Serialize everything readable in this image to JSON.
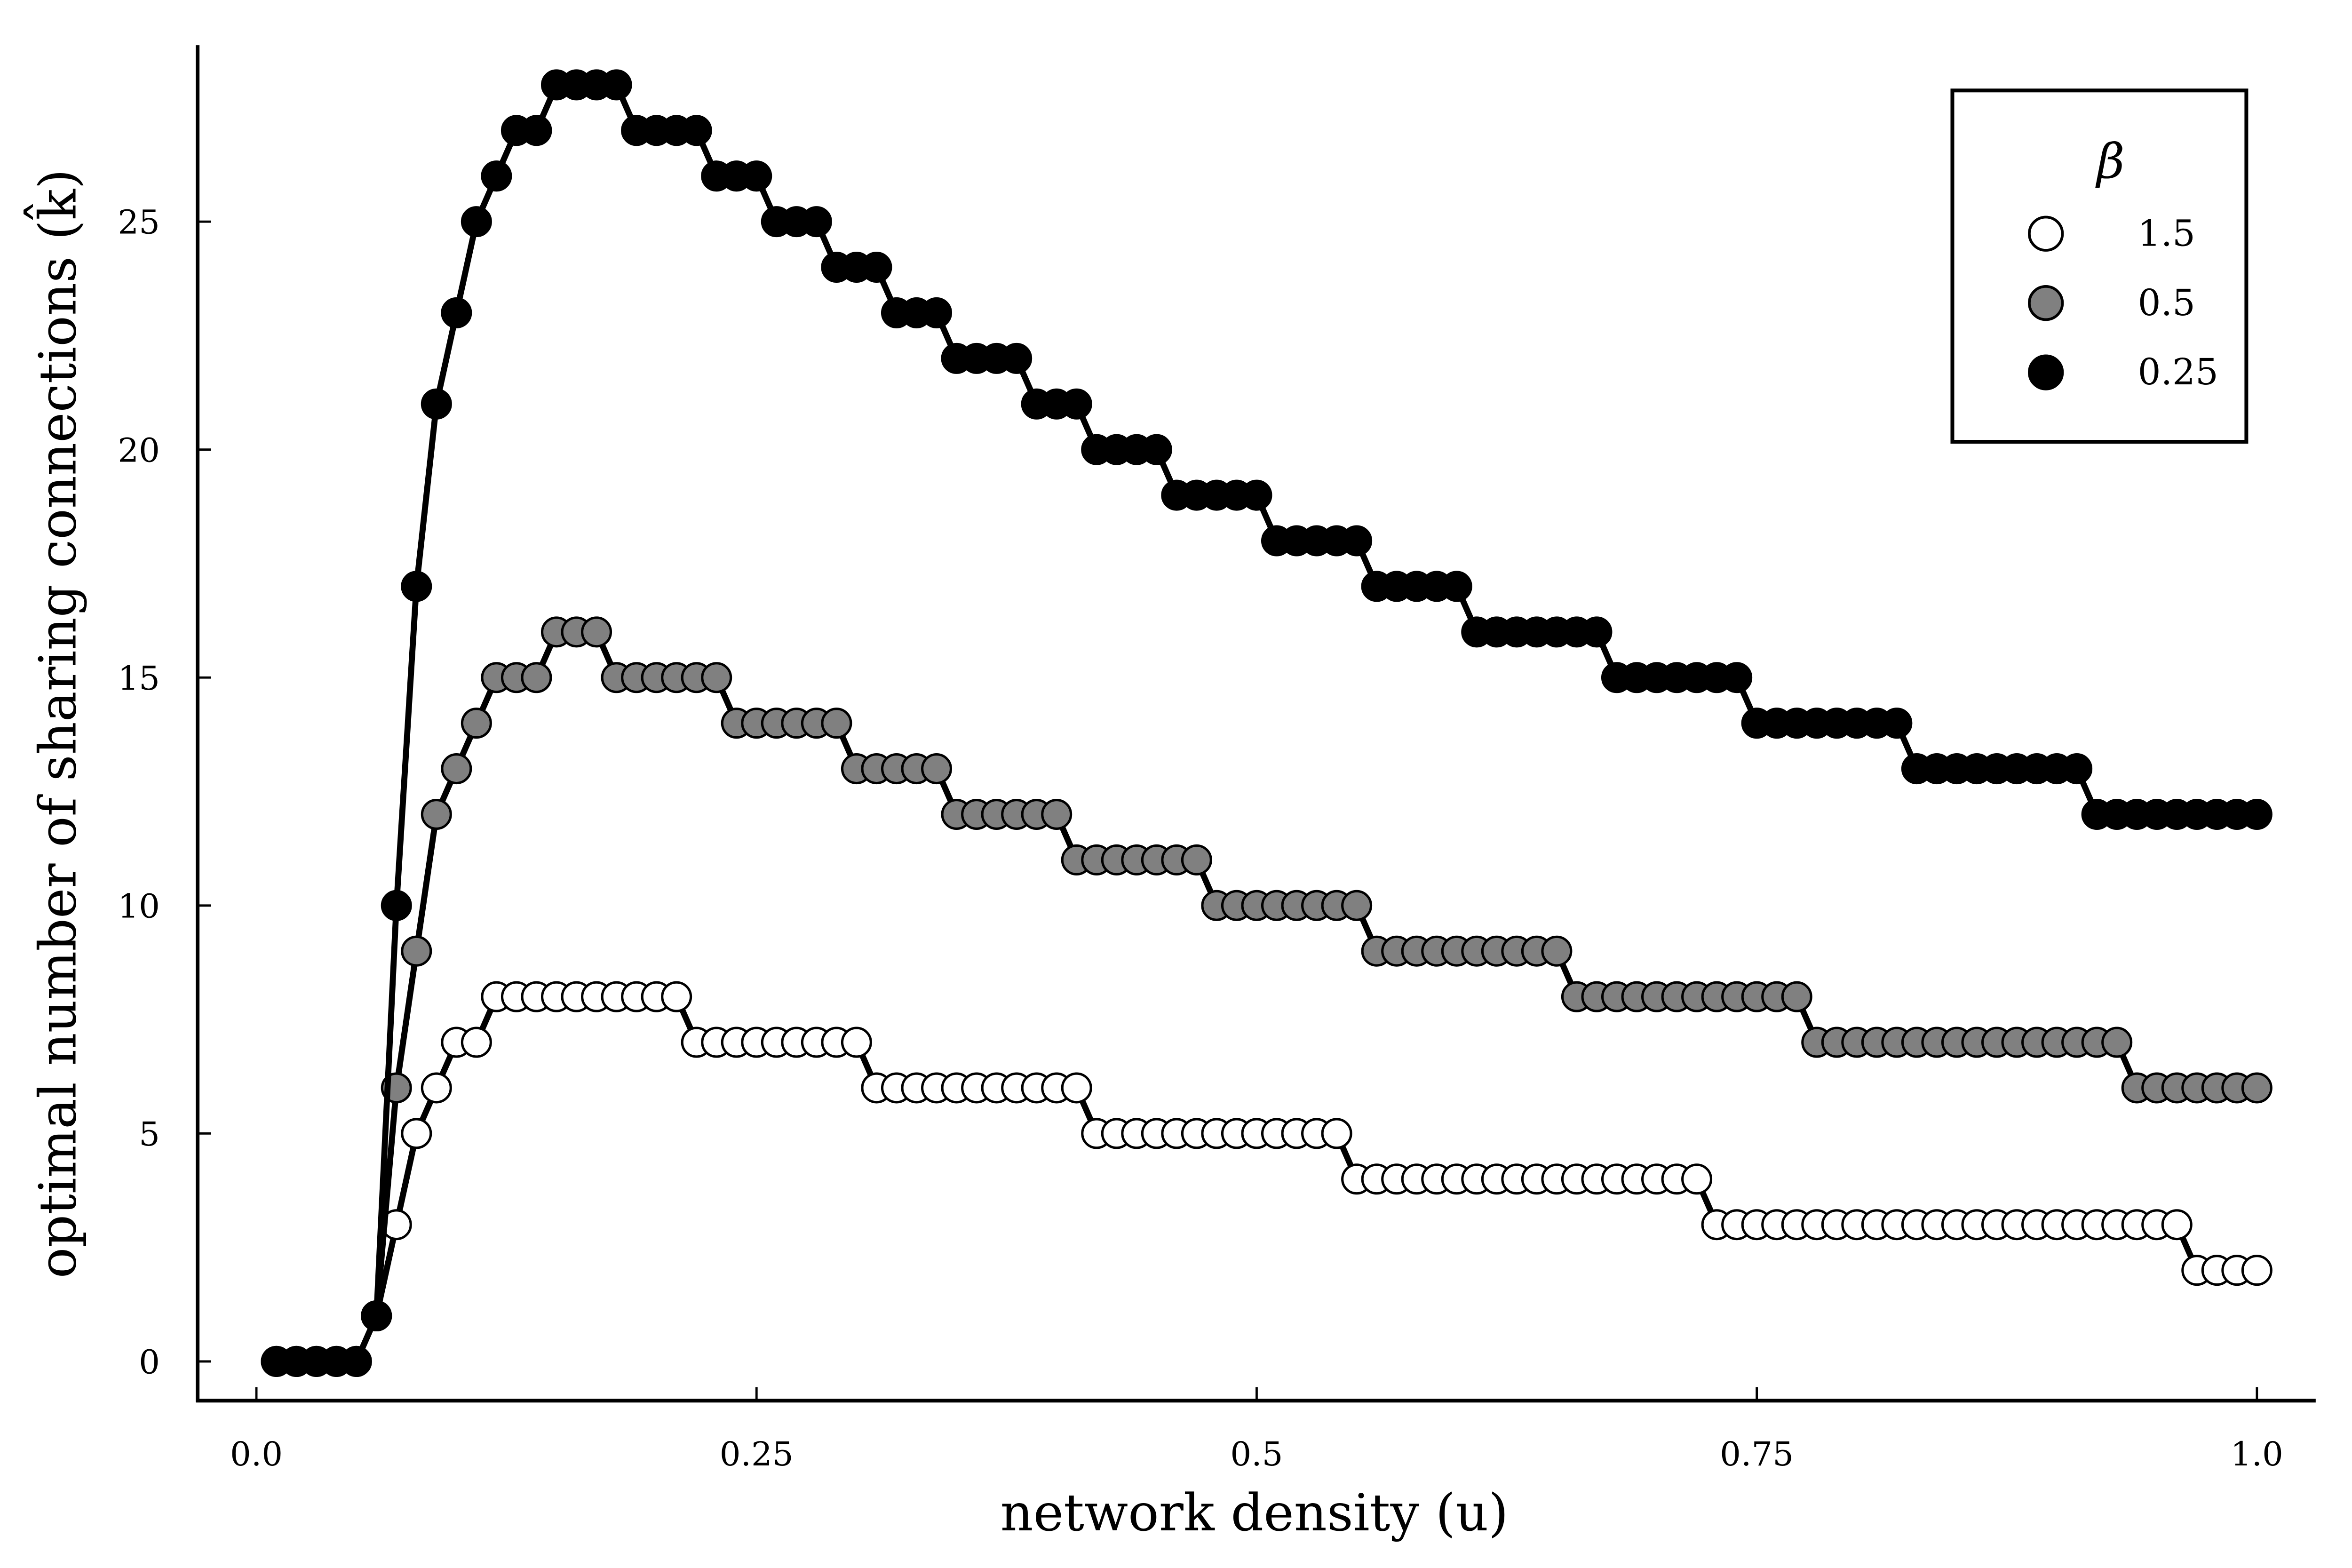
{
  "chart_data": {
    "type": "line",
    "xlabel": "network density (u)",
    "ylabel": "optimal number of sharing connections (k̂)",
    "xlim": [
      0.0,
      1.0
    ],
    "ylim": [
      0,
      28
    ],
    "x_ticks": [
      "0.0",
      "0.25",
      "0.5",
      "0.75",
      "1.0"
    ],
    "x_tick_values": [
      0.0,
      0.25,
      0.5,
      0.75,
      1.0
    ],
    "y_ticks": [
      "0",
      "5",
      "10",
      "15",
      "20",
      "25"
    ],
    "y_tick_values": [
      0,
      5,
      10,
      15,
      20,
      25
    ],
    "grid": false,
    "legend": {
      "title": "β",
      "placement": "top-right"
    },
    "x_start": 0.01,
    "x_step": 0.01,
    "series": [
      {
        "name": "1.5",
        "marker_fill": "#ffffff",
        "values": [
          0,
          0,
          0,
          0,
          0,
          1,
          3,
          5,
          6,
          7,
          7,
          8,
          8,
          8,
          8,
          8,
          8,
          8,
          8,
          8,
          8,
          7,
          7,
          7,
          7,
          7,
          7,
          7,
          7,
          7,
          6,
          6,
          6,
          6,
          6,
          6,
          6,
          6,
          6,
          6,
          6,
          5,
          5,
          5,
          5,
          5,
          5,
          5,
          5,
          5,
          5,
          5,
          5,
          5,
          4,
          4,
          4,
          4,
          4,
          4,
          4,
          4,
          4,
          4,
          4,
          4,
          4,
          4,
          4,
          4,
          4,
          4,
          3,
          3,
          3,
          3,
          3,
          3,
          3,
          3,
          3,
          3,
          3,
          3,
          3,
          3,
          3,
          3,
          3,
          3,
          3,
          3,
          3,
          3,
          3,
          3,
          2,
          2,
          2,
          2
        ]
      },
      {
        "name": "0.5",
        "marker_fill": "#808080",
        "values": [
          0,
          0,
          0,
          0,
          0,
          1,
          6,
          9,
          12,
          13,
          14,
          15,
          15,
          15,
          16,
          16,
          16,
          15,
          15,
          15,
          15,
          15,
          15,
          14,
          14,
          14,
          14,
          14,
          14,
          13,
          13,
          13,
          13,
          13,
          12,
          12,
          12,
          12,
          12,
          12,
          11,
          11,
          11,
          11,
          11,
          11,
          11,
          10,
          10,
          10,
          10,
          10,
          10,
          10,
          10,
          9,
          9,
          9,
          9,
          9,
          9,
          9,
          9,
          9,
          9,
          8,
          8,
          8,
          8,
          8,
          8,
          8,
          8,
          8,
          8,
          8,
          8,
          7,
          7,
          7,
          7,
          7,
          7,
          7,
          7,
          7,
          7,
          7,
          7,
          7,
          7,
          7,
          7,
          6,
          6,
          6,
          6,
          6,
          6,
          6
        ]
      },
      {
        "name": "0.25",
        "marker_fill": "#000000",
        "values": [
          0,
          0,
          0,
          0,
          0,
          1,
          10,
          17,
          21,
          23,
          25,
          26,
          27,
          27,
          28,
          28,
          28,
          28,
          27,
          27,
          27,
          27,
          26,
          26,
          26,
          25,
          25,
          25,
          24,
          24,
          24,
          23,
          23,
          23,
          22,
          22,
          22,
          22,
          21,
          21,
          21,
          20,
          20,
          20,
          20,
          19,
          19,
          19,
          19,
          19,
          18,
          18,
          18,
          18,
          18,
          17,
          17,
          17,
          17,
          17,
          16,
          16,
          16,
          16,
          16,
          16,
          16,
          15,
          15,
          15,
          15,
          15,
          15,
          15,
          14,
          14,
          14,
          14,
          14,
          14,
          14,
          14,
          13,
          13,
          13,
          13,
          13,
          13,
          13,
          13,
          13,
          12,
          12,
          12,
          12,
          12,
          12,
          12,
          12,
          12
        ]
      }
    ]
  }
}
